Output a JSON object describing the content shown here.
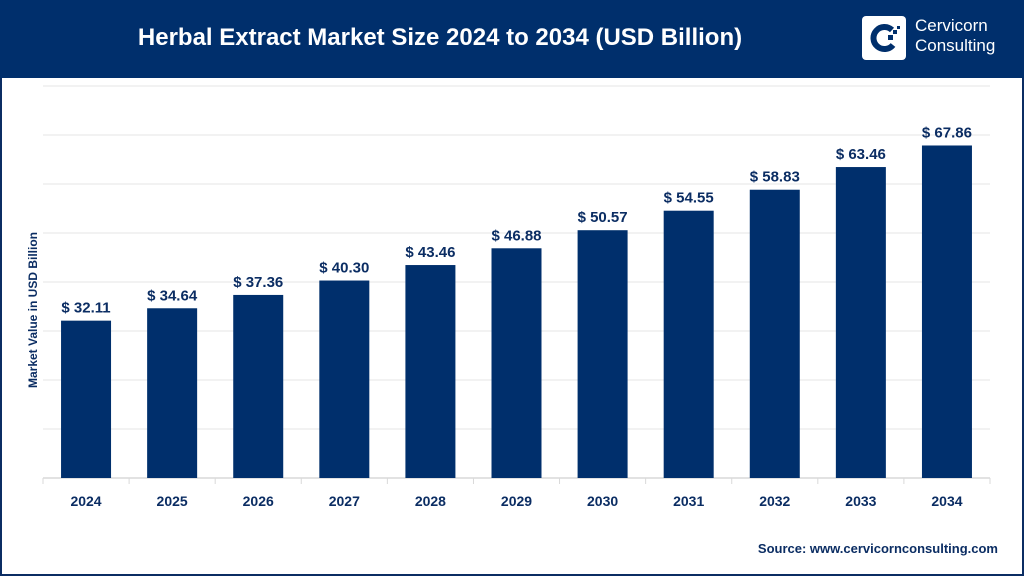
{
  "header": {
    "title": "Herbal Extract Market Size 2024 to 2034 (USD Billion)",
    "logo_line1": "Cervicorn",
    "logo_line2": "Consulting"
  },
  "source": "Source: www.cervicornconsulting.com",
  "colors": {
    "bar": "#002f6c",
    "header": "#002f6c",
    "text": "#0b2d63"
  },
  "chart_data": {
    "type": "bar",
    "title": "Herbal Extract Market Size 2024 to 2034 (USD Billion)",
    "xlabel": "",
    "ylabel": "Market Value in USD Billion",
    "categories": [
      "2024",
      "2025",
      "2026",
      "2027",
      "2028",
      "2029",
      "2030",
      "2031",
      "2032",
      "2033",
      "2034"
    ],
    "values": [
      32.11,
      34.64,
      37.36,
      40.3,
      43.46,
      46.88,
      50.57,
      54.55,
      58.83,
      63.46,
      67.86
    ],
    "data_labels": [
      "$ 32.11",
      "$ 34.64",
      "$ 37.36",
      "$ 40.30",
      "$ 43.46",
      "$ 46.88",
      "$ 50.57",
      "$ 54.55",
      "$ 58.83",
      "$ 63.46",
      "$ 67.86"
    ],
    "ylim": [
      0,
      80
    ],
    "grid": true
  }
}
